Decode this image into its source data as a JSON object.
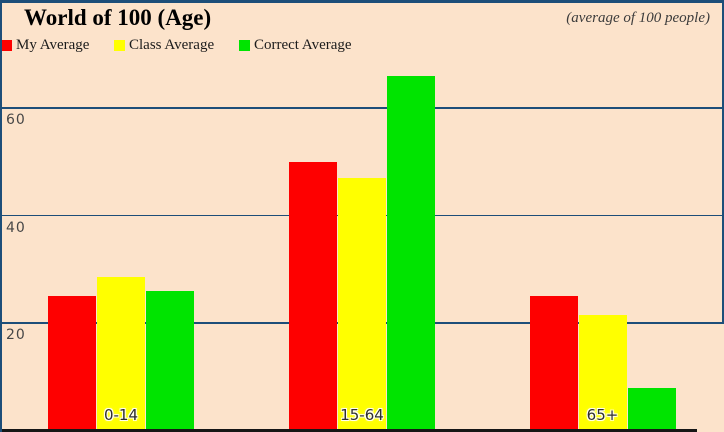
{
  "header": {
    "title": "World of 100 (Age)",
    "subtitle": "(average of 100 people)"
  },
  "legend": [
    {
      "label": "My Average",
      "color": "#fe0000",
      "icon": "red-swatch"
    },
    {
      "label": "Class Average",
      "color": "#ffff00",
      "icon": "yellow-swatch"
    },
    {
      "label": "Correct Average",
      "color": "#00e400",
      "icon": "green-swatch"
    }
  ],
  "chart_data": {
    "type": "bar",
    "title": "World of 100 (Age)",
    "subtitle": "(average of 100 people)",
    "categories": [
      "0-14",
      "15-64",
      "65+"
    ],
    "series": [
      {
        "name": "My Average",
        "color": "#fe0000",
        "values": [
          25,
          50,
          25
        ]
      },
      {
        "name": "Class Average",
        "color": "#ffff00",
        "values": [
          28.5,
          47,
          21.5
        ]
      },
      {
        "name": "Correct Average",
        "color": "#00e400",
        "values": [
          26,
          66,
          8
        ]
      }
    ],
    "xlabel": "",
    "ylabel": "",
    "ylim": [
      0,
      70
    ],
    "yticks": [
      20,
      40,
      60
    ],
    "grid": true,
    "legend_position": "top-left"
  },
  "colors": {
    "background": "#fce3cb",
    "frame_navy": "#1d4e79",
    "gridline": "#1d4e79",
    "axis_black": "#161616",
    "tick_text": "#474747"
  }
}
